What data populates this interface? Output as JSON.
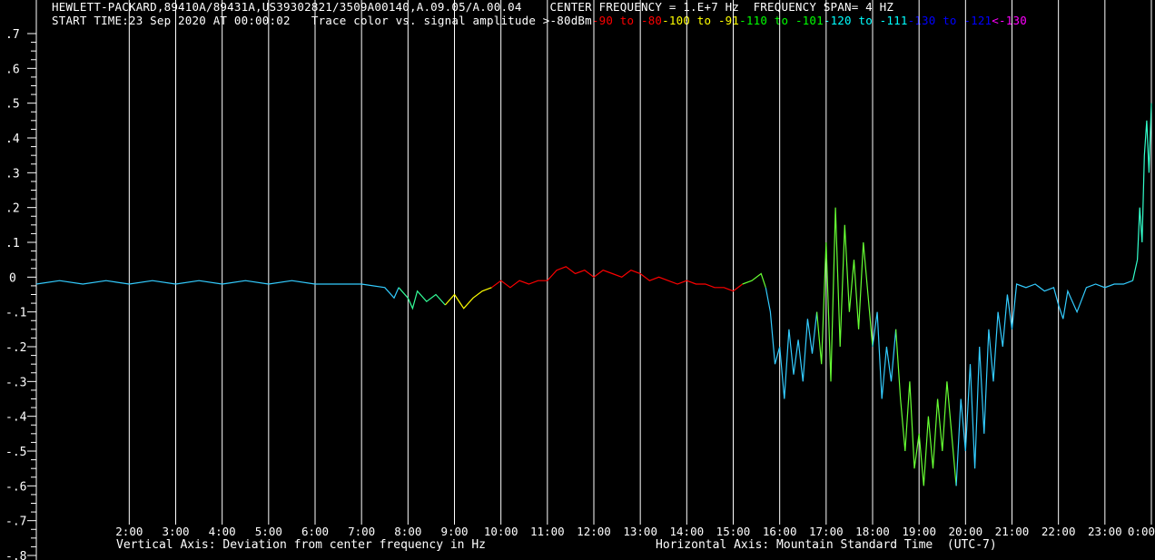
{
  "header": {
    "line1": "HEWLETT-PACKARD,89410A/89431A,US39302821/3509A00140,A.09.05/A.00.04    CENTER FREQUENCY = 1.E+7 Hz  FREQUENCY SPAN= 4 HZ",
    "start_time": "START TIME:23 Sep 2020 AT 00:00:02",
    "legend_intro": "Trace color vs. signal amplitude >-80dBm",
    "legend_ranges": [
      {
        "text": "-90 to -80",
        "color": "#ff0000"
      },
      {
        "text": "-100 to -91",
        "color": "#ffff00"
      },
      {
        "text": "-110 to -101",
        "color": "#00ff00"
      },
      {
        "text": "-120 to -111",
        "color": "#00ffff"
      },
      {
        "text": "-130 to -121",
        "color": "#0000ff"
      },
      {
        "text": "<-130",
        "color": "#ff00ff"
      }
    ]
  },
  "footer": {
    "vertical_axis": "Vertical Axis: Deviation from center frequency in Hz",
    "horizontal_axis": "Horizontal Axis: Mountain Standard Time  (UTC-7)"
  },
  "chart_data": {
    "type": "line",
    "xlabel": "Horizontal Axis: Mountain Standard Time  (UTC-7)",
    "ylabel": "Vertical Axis: Deviation from center frequency in Hz",
    "x_unit": "hour",
    "xlim": [
      0,
      24
    ],
    "ylim": [
      -0.8,
      0.7
    ],
    "grid": "vertical-only",
    "x_ticks": [
      {
        "x": 2,
        "label": "2:00"
      },
      {
        "x": 3,
        "label": "3:00"
      },
      {
        "x": 4,
        "label": "4:00"
      },
      {
        "x": 5,
        "label": "5:00"
      },
      {
        "x": 6,
        "label": "6:00"
      },
      {
        "x": 7,
        "label": "7:00"
      },
      {
        "x": 8,
        "label": "8:00"
      },
      {
        "x": 9,
        "label": "9:00"
      },
      {
        "x": 10,
        "label": "10:00"
      },
      {
        "x": 11,
        "label": "11:00"
      },
      {
        "x": 12,
        "label": "12:00"
      },
      {
        "x": 13,
        "label": "13:00"
      },
      {
        "x": 14,
        "label": "14:00"
      },
      {
        "x": 15,
        "label": "15:00"
      },
      {
        "x": 16,
        "label": "16:00"
      },
      {
        "x": 17,
        "label": "17:00"
      },
      {
        "x": 18,
        "label": "18:00"
      },
      {
        "x": 19,
        "label": "19:00"
      },
      {
        "x": 20,
        "label": "20:00"
      },
      {
        "x": 21,
        "label": "21:00"
      },
      {
        "x": 22,
        "label": "22:00"
      },
      {
        "x": 23,
        "label": "23:00"
      },
      {
        "x": 24,
        "label": "0:00"
      }
    ],
    "y_ticks": [
      {
        "y": 0.7,
        "label": ".7"
      },
      {
        "y": 0.6,
        "label": ".6"
      },
      {
        "y": 0.5,
        "label": ".5"
      },
      {
        "y": 0.4,
        "label": ".4"
      },
      {
        "y": 0.3,
        "label": ".3"
      },
      {
        "y": 0.2,
        "label": ".2"
      },
      {
        "y": 0.1,
        "label": ".1"
      },
      {
        "y": 0,
        "label": "0"
      },
      {
        "y": -0.1,
        "label": "-.1"
      },
      {
        "y": -0.2,
        "label": "-.2"
      },
      {
        "y": -0.3,
        "label": "-.3"
      },
      {
        "y": -0.4,
        "label": "-.4"
      },
      {
        "y": -0.5,
        "label": "-.5"
      },
      {
        "y": -0.6,
        "label": "-.6"
      },
      {
        "y": -0.7,
        "label": "-.7"
      },
      {
        "y": -0.8,
        "label": "-.8"
      }
    ],
    "series": [
      {
        "color": "#33ccff",
        "points": [
          [
            0,
            -0.02
          ],
          [
            0.5,
            -0.01
          ],
          [
            1,
            -0.02
          ],
          [
            1.5,
            -0.01
          ],
          [
            2,
            -0.02
          ],
          [
            2.5,
            -0.01
          ],
          [
            3,
            -0.02
          ],
          [
            3.5,
            -0.01
          ],
          [
            4,
            -0.02
          ],
          [
            4.5,
            -0.01
          ],
          [
            5,
            -0.02
          ],
          [
            5.5,
            -0.01
          ],
          [
            6,
            -0.02
          ],
          [
            6.5,
            -0.02
          ],
          [
            7,
            -0.02
          ],
          [
            7.5,
            -0.03
          ],
          [
            7.7,
            -0.06
          ],
          [
            7.8,
            -0.03
          ]
        ]
      },
      {
        "color": "#33ff99",
        "points": [
          [
            7.8,
            -0.03
          ],
          [
            8.0,
            -0.06
          ],
          [
            8.1,
            -0.09
          ],
          [
            8.2,
            -0.04
          ],
          [
            8.4,
            -0.07
          ],
          [
            8.6,
            -0.05
          ],
          [
            8.8,
            -0.08
          ]
        ]
      },
      {
        "color": "#ffff00",
        "points": [
          [
            8.8,
            -0.08
          ],
          [
            9.0,
            -0.05
          ],
          [
            9.2,
            -0.09
          ],
          [
            9.4,
            -0.06
          ],
          [
            9.6,
            -0.04
          ],
          [
            9.8,
            -0.03
          ]
        ]
      },
      {
        "color": "#ff0000",
        "points": [
          [
            9.8,
            -0.03
          ],
          [
            10.0,
            -0.01
          ],
          [
            10.2,
            -0.03
          ],
          [
            10.4,
            -0.01
          ],
          [
            10.6,
            -0.02
          ],
          [
            10.8,
            -0.01
          ],
          [
            11.0,
            -0.01
          ],
          [
            11.2,
            0.02
          ],
          [
            11.4,
            0.03
          ],
          [
            11.6,
            0.01
          ],
          [
            11.8,
            0.02
          ],
          [
            12.0,
            0.0
          ],
          [
            12.2,
            0.02
          ],
          [
            12.4,
            0.01
          ],
          [
            12.6,
            0.0
          ],
          [
            12.8,
            0.02
          ],
          [
            13.0,
            0.01
          ],
          [
            13.2,
            -0.01
          ],
          [
            13.4,
            0.0
          ],
          [
            13.6,
            -0.01
          ],
          [
            13.8,
            -0.02
          ],
          [
            14.0,
            -0.01
          ],
          [
            14.2,
            -0.02
          ],
          [
            14.4,
            -0.02
          ],
          [
            14.6,
            -0.03
          ],
          [
            14.8,
            -0.03
          ],
          [
            15.0,
            -0.04
          ],
          [
            15.2,
            -0.02
          ]
        ]
      },
      {
        "color": "#66ff33",
        "points": [
          [
            15.2,
            -0.02
          ],
          [
            15.4,
            -0.01
          ],
          [
            15.6,
            0.01
          ],
          [
            15.7,
            -0.03
          ]
        ]
      },
      {
        "color": "#33ccff",
        "points": [
          [
            15.7,
            -0.03
          ],
          [
            15.8,
            -0.1
          ],
          [
            15.9,
            -0.25
          ],
          [
            16.0,
            -0.2
          ],
          [
            16.1,
            -0.35
          ],
          [
            16.2,
            -0.15
          ],
          [
            16.3,
            -0.28
          ],
          [
            16.4,
            -0.18
          ],
          [
            16.5,
            -0.3
          ],
          [
            16.6,
            -0.12
          ],
          [
            16.7,
            -0.22
          ],
          [
            16.8,
            -0.1
          ]
        ]
      },
      {
        "color": "#66ff33",
        "points": [
          [
            16.8,
            -0.1
          ],
          [
            16.9,
            -0.25
          ],
          [
            17.0,
            0.1
          ],
          [
            17.1,
            -0.3
          ],
          [
            17.2,
            0.2
          ],
          [
            17.3,
            -0.2
          ],
          [
            17.4,
            0.15
          ],
          [
            17.5,
            -0.1
          ],
          [
            17.6,
            0.05
          ],
          [
            17.7,
            -0.15
          ],
          [
            17.8,
            0.1
          ],
          [
            17.9,
            -0.05
          ],
          [
            18.0,
            -0.2
          ]
        ]
      },
      {
        "color": "#33ccff",
        "points": [
          [
            18.0,
            -0.2
          ],
          [
            18.1,
            -0.1
          ],
          [
            18.2,
            -0.35
          ],
          [
            18.3,
            -0.2
          ],
          [
            18.4,
            -0.3
          ],
          [
            18.5,
            -0.15
          ]
        ]
      },
      {
        "color": "#66ff33",
        "points": [
          [
            18.5,
            -0.15
          ],
          [
            18.6,
            -0.35
          ],
          [
            18.7,
            -0.5
          ],
          [
            18.8,
            -0.3
          ],
          [
            18.9,
            -0.55
          ],
          [
            19.0,
            -0.45
          ],
          [
            19.1,
            -0.6
          ],
          [
            19.2,
            -0.4
          ],
          [
            19.3,
            -0.55
          ],
          [
            19.4,
            -0.35
          ],
          [
            19.5,
            -0.5
          ],
          [
            19.6,
            -0.3
          ],
          [
            19.7,
            -0.45
          ],
          [
            19.8,
            -0.6
          ]
        ]
      },
      {
        "color": "#33ccff",
        "points": [
          [
            19.8,
            -0.6
          ],
          [
            19.9,
            -0.35
          ],
          [
            20.0,
            -0.5
          ],
          [
            20.1,
            -0.25
          ],
          [
            20.2,
            -0.55
          ],
          [
            20.3,
            -0.2
          ],
          [
            20.4,
            -0.45
          ],
          [
            20.5,
            -0.15
          ],
          [
            20.6,
            -0.3
          ],
          [
            20.7,
            -0.1
          ],
          [
            20.8,
            -0.2
          ],
          [
            20.9,
            -0.05
          ],
          [
            21.0,
            -0.15
          ],
          [
            21.1,
            -0.02
          ],
          [
            21.3,
            -0.03
          ],
          [
            21.5,
            -0.02
          ],
          [
            21.7,
            -0.04
          ],
          [
            21.9,
            -0.03
          ],
          [
            22.0,
            -0.08
          ],
          [
            22.1,
            -0.12
          ],
          [
            22.2,
            -0.04
          ],
          [
            22.4,
            -0.1
          ],
          [
            22.6,
            -0.03
          ],
          [
            22.8,
            -0.02
          ],
          [
            23.0,
            -0.03
          ],
          [
            23.2,
            -0.02
          ],
          [
            23.4,
            -0.02
          ],
          [
            23.6,
            -0.01
          ]
        ]
      },
      {
        "color": "#33ffcc",
        "points": [
          [
            23.6,
            -0.01
          ],
          [
            23.7,
            0.05
          ],
          [
            23.75,
            0.2
          ],
          [
            23.8,
            0.1
          ],
          [
            23.85,
            0.35
          ],
          [
            23.9,
            0.45
          ],
          [
            23.95,
            0.3
          ],
          [
            24.0,
            0.5
          ]
        ]
      }
    ]
  }
}
